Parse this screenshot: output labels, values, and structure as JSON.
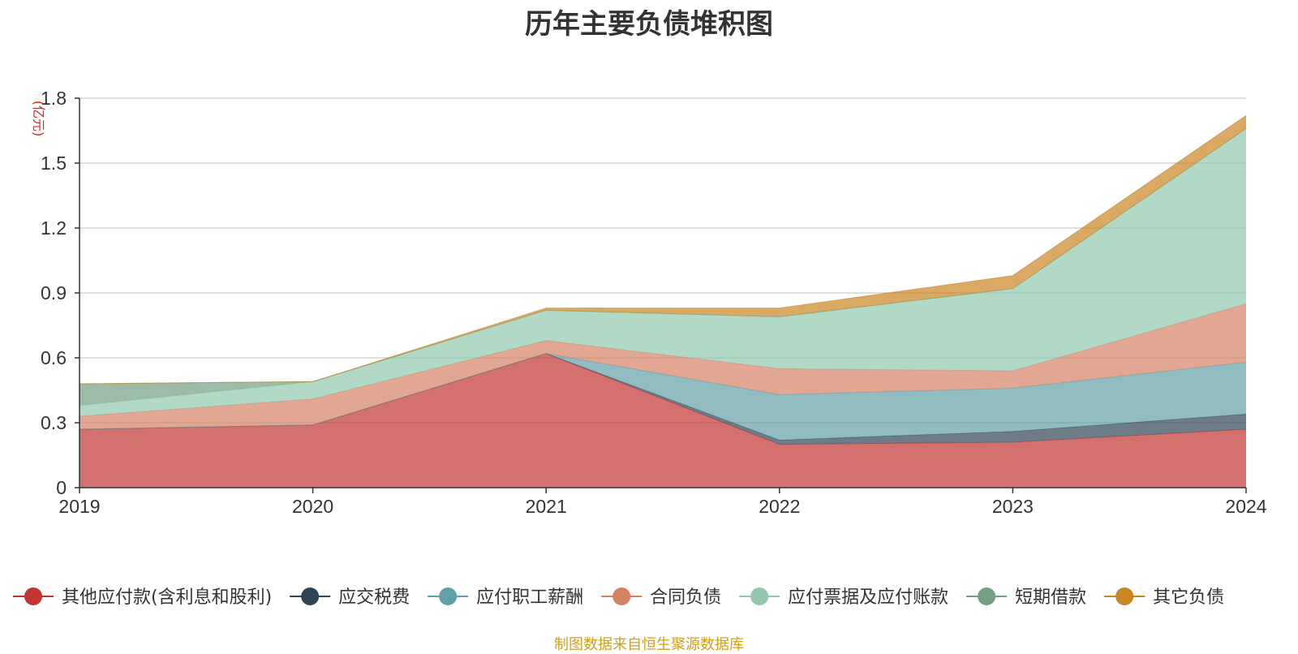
{
  "title": "历年主要负债堆积图",
  "source_note": "制图数据来自恒生聚源数据库",
  "chart_data": {
    "type": "area",
    "stacked": true,
    "title": "历年主要负债堆积图",
    "x": [
      "2019",
      "2020",
      "2021",
      "2022",
      "2023",
      "2024"
    ],
    "ylabel": "(亿元)",
    "ylim": [
      0,
      1.8
    ],
    "yticks": [
      "0",
      "0.3",
      "0.6",
      "0.9",
      "1.2",
      "1.5",
      "1.8"
    ],
    "grid": true,
    "legend_position": "bottom",
    "series": [
      {
        "name": "其他应付款(含利息和股利)",
        "color": "#c23531",
        "values": [
          0.27,
          0.29,
          0.62,
          0.2,
          0.21,
          0.27
        ]
      },
      {
        "name": "应交税费",
        "color": "#2f4554",
        "values": [
          0.0,
          0.0,
          0.0,
          0.02,
          0.05,
          0.07
        ]
      },
      {
        "name": "应付职工薪酬",
        "color": "#61a0a8",
        "values": [
          0.0,
          0.0,
          0.0,
          0.21,
          0.2,
          0.24
        ]
      },
      {
        "name": "合同负债",
        "color": "#d48265",
        "values": [
          0.06,
          0.12,
          0.06,
          0.12,
          0.08,
          0.27
        ]
      },
      {
        "name": "应付票据及应付账款",
        "color": "#91c7ae",
        "values": [
          0.05,
          0.08,
          0.14,
          0.24,
          0.38,
          0.81
        ]
      },
      {
        "name": "短期借款",
        "color": "#749f83",
        "values": [
          0.1,
          0.0,
          0.0,
          0.0,
          0.0,
          0.0
        ]
      },
      {
        "name": "其它负债",
        "color": "#ca8622",
        "values": [
          0.0,
          0.0,
          0.01,
          0.04,
          0.06,
          0.06
        ]
      }
    ]
  }
}
